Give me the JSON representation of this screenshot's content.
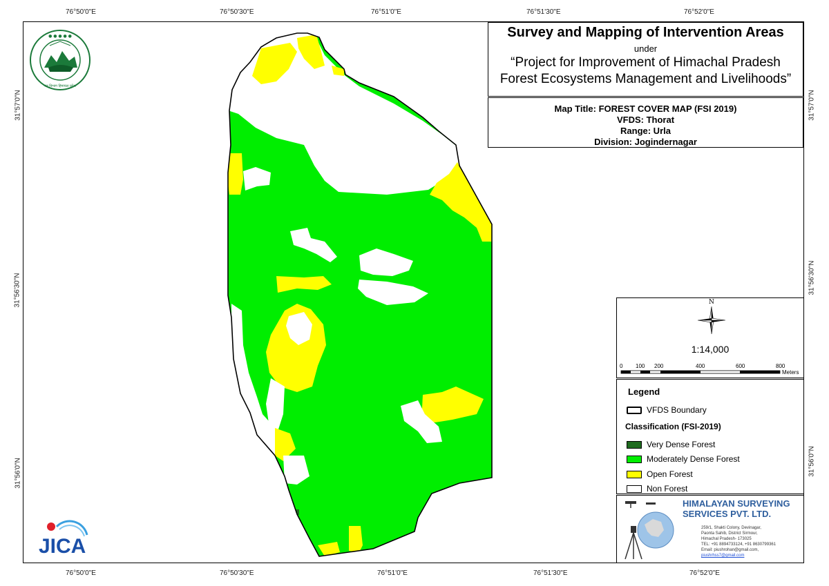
{
  "map_title_block": {
    "title": "Survey and Mapping of Intervention Areas",
    "under": "under",
    "project_line1": "“Project for Improvement of Himachal Pradesh",
    "project_line2": "Forest Ecosystems Management and Livelihoods”"
  },
  "map_info": {
    "map_title": "Map Title: FOREST COVER MAP (FSI 2019)",
    "vfds": "VFDS: Thorat",
    "range": "Range: Urla",
    "division": "Division: Jogindernagar"
  },
  "graticule": {
    "top_longitudes": [
      "76°50'0\"E",
      "76°50'30\"E",
      "76°51'0\"E",
      "76°51'30\"E",
      "76°52'0\"E"
    ],
    "bottom_longitudes": [
      "76°50'0\"E",
      "76°50'30\"E",
      "76°51'0\"E",
      "76°51'30\"E",
      "76°52'0\"E"
    ],
    "left_latitudes": [
      "31°57'0\"N",
      "31°56'30\"N",
      "31°56'0\"N"
    ],
    "right_latitudes": [
      "31°57'0\"N",
      "31°56'30\"N",
      "31°56'0\"N"
    ]
  },
  "north_arrow": {
    "label": "N",
    "icon": "north-arrow-compass-icon"
  },
  "scale": {
    "ratio": "1:14,000",
    "ticks": [
      "0",
      "100",
      "200",
      "400",
      "600",
      "800"
    ],
    "unit": "Meters"
  },
  "legend": {
    "title": "Legend",
    "boundary_label": "VFDS Boundary",
    "classification_title": "Classification (FSI-2019)",
    "classes": [
      {
        "label": "Very Dense Forest",
        "color": "#1f6b1f"
      },
      {
        "label": "Moderately Dense Forest",
        "color": "#00ee00"
      },
      {
        "label": "Open Forest",
        "color": "#ffff00"
      },
      {
        "label": "Non Forest",
        "color": "#ffffff"
      }
    ]
  },
  "logos": {
    "forest_dept_seal": "वन विभाग हिमाचल प्रदेश",
    "jica": "JICA"
  },
  "company": {
    "name_line1": "HIMALAYAN SURVEYING",
    "name_line2": "SERVICES PVT. LTD.",
    "address": [
      "259/1, Shakti Colony, Devinagar,",
      "Paonta Sahib, District Sirmour,",
      "Himachal Pradesh- 173025",
      "TEL: +91 8894733124, +91 8630799361",
      "Email: piushrohan@gmail.com,",
      "piushrhss7@gmail.com"
    ]
  },
  "colors": {
    "moderately_dense": "#00ee00",
    "open_forest": "#ffff00",
    "non_forest": "#ffffff",
    "very_dense": "#1f6b1f",
    "company_blue": "#2f5f9e"
  }
}
